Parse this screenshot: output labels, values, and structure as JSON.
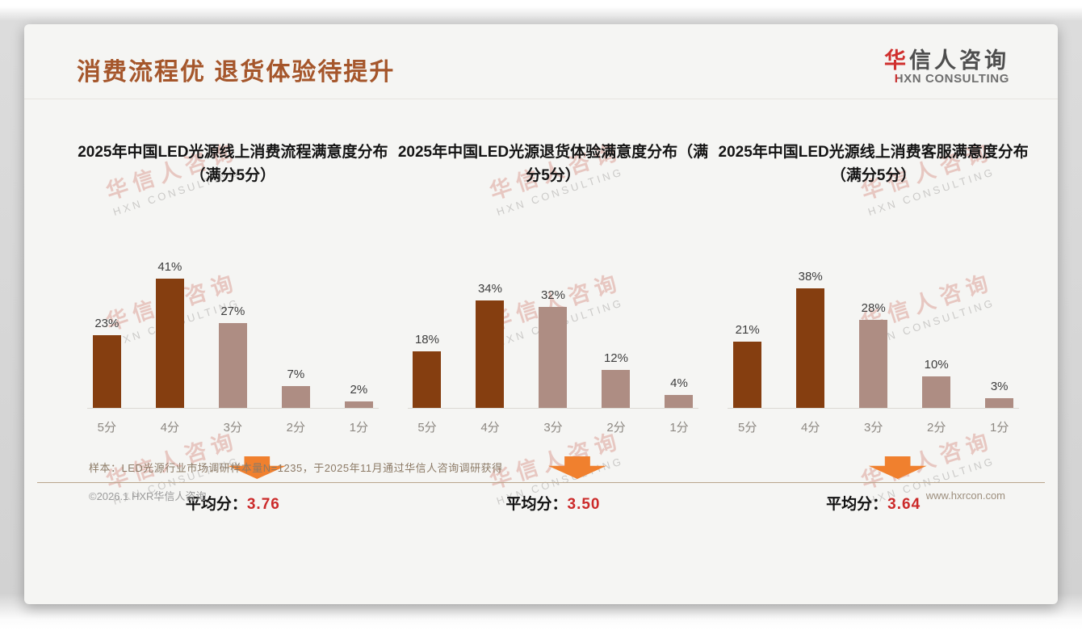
{
  "page": {
    "title": "消费流程优 退货体验待提升",
    "logo": {
      "zh_red": "华",
      "zh_rest": "信人咨询",
      "en_first": "H",
      "en_rest": "XN CONSULTING"
    },
    "watermark": {
      "line1": "华信人咨询",
      "line2": "HXN CONSULTING"
    },
    "note": "样本：LED光源行业市场调研样本量N=1235，于2025年11月通过华信人咨询调研获得",
    "footer_left": "©2026.1 HXR华信人咨询",
    "footer_right": "www.hxrcon.com"
  },
  "colors": {
    "page_title": "#A5562B",
    "bar_dark": "#853E10",
    "bar_light": "#AE8D83",
    "arrow_orange": "#F0802E",
    "average_red": "#CC2A2A",
    "logo_red": "#D0302E"
  },
  "chart_data": [
    {
      "type": "bar",
      "title": "2025年中国LED光源线上消费流程满意度分布（满分5分）",
      "categories": [
        "5分",
        "4分",
        "3分",
        "2分",
        "1分"
      ],
      "values": [
        23,
        41,
        27,
        7,
        2
      ],
      "unit": "%",
      "value_labels_shown": true,
      "ylim": [
        0,
        45
      ],
      "bar_colors": [
        "#853E10",
        "#853E10",
        "#AE8D83",
        "#AE8D83",
        "#AE8D83"
      ],
      "average_label": "平均分：",
      "average": "3.76"
    },
    {
      "type": "bar",
      "title": "2025年中国LED光源退货体验满意度分布（满分5分）",
      "categories": [
        "5分",
        "4分",
        "3分",
        "2分",
        "1分"
      ],
      "values": [
        18,
        34,
        32,
        12,
        4
      ],
      "unit": "%",
      "value_labels_shown": true,
      "ylim": [
        0,
        45
      ],
      "bar_colors": [
        "#853E10",
        "#853E10",
        "#AE8D83",
        "#AE8D83",
        "#AE8D83"
      ],
      "average_label": "平均分：",
      "average": "3.50"
    },
    {
      "type": "bar",
      "title": "2025年中国LED光源线上消费客服满意度分布（满分5分）",
      "categories": [
        "5分",
        "4分",
        "3分",
        "2分",
        "1分"
      ],
      "values": [
        21,
        38,
        28,
        10,
        3
      ],
      "unit": "%",
      "value_labels_shown": true,
      "ylim": [
        0,
        45
      ],
      "bar_colors": [
        "#853E10",
        "#853E10",
        "#AE8D83",
        "#AE8D83",
        "#AE8D83"
      ],
      "average_label": "平均分：",
      "average": "3.64"
    }
  ]
}
